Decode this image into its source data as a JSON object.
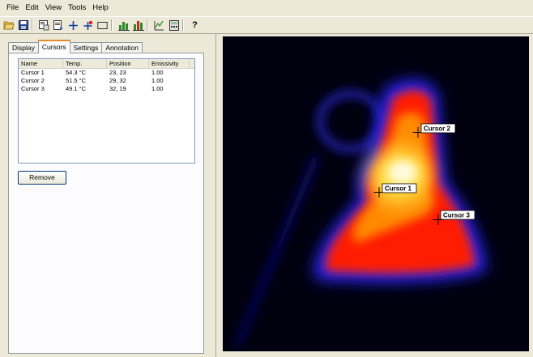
{
  "menu": {
    "file": "File",
    "edit": "Edit",
    "view": "View",
    "tools": "Tools",
    "help": "Help"
  },
  "toolbar": {
    "help_label": "?"
  },
  "tabs": {
    "display": "Display",
    "cursors": "Cursors",
    "settings": "Settings",
    "annotation": "Annotation"
  },
  "cursor_table": {
    "headers": {
      "name": "Name",
      "temp": "Temp.",
      "position": "Position",
      "emissivity": "Emissivity"
    },
    "rows": [
      {
        "name": "Cursor 1",
        "temp": "54.3 °C",
        "position": "23, 23",
        "emissivity": "1.00"
      },
      {
        "name": "Cursor 2",
        "temp": "51.5 °C",
        "position": "29, 32",
        "emissivity": "1.00"
      },
      {
        "name": "Cursor 3",
        "temp": "49.1 °C",
        "position": "32, 19",
        "emissivity": "1.00"
      }
    ]
  },
  "buttons": {
    "remove": "Remove"
  },
  "image_markers": {
    "c1": "Cursor 1",
    "c2": "Cursor 2",
    "c3": "Cursor 3"
  },
  "colors": {
    "accent_tab": "#e68b2c",
    "window_bg": "#ece9d8",
    "hot": "#fffbe0",
    "warm": "#ff2a00",
    "cool": "#2a2aff",
    "background": "#00000f"
  }
}
